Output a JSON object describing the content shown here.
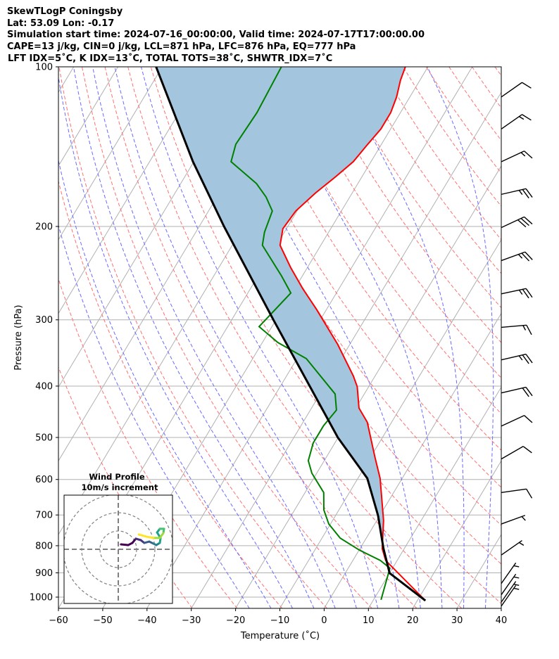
{
  "header": {
    "title": "SkewTLogP Coningsby",
    "location": "Lat: 53.09   Lon: -0.17",
    "times": "Simulation start time: 2024-07-16_00:00:00, Valid time: 2024-07-17T17:00:00.00",
    "params": "CAPE=13 j/kg, CIN=0 j/kg, LCL=871 hPa, LFC=876 hPa, EQ=777 hPa",
    "indices": "LFT IDX=5˚C, K IDX=13˚C, TOTAL TOTS=38˚C, SHWTR_IDX=7˚C"
  },
  "chart_data": {
    "type": "line",
    "title": "SkewTLogP Coningsby",
    "xlabel": "Temperature (˚C)",
    "ylabel": "Pressure (hPa)",
    "xlim": [
      -60,
      40
    ],
    "ylim": [
      1050,
      100
    ],
    "x_ticks": [
      "−60",
      "−50",
      "−40",
      "−30",
      "−20",
      "−10",
      "0",
      "10",
      "20",
      "30",
      "40"
    ],
    "x_tick_values": [
      -60,
      -50,
      -40,
      -30,
      -20,
      -10,
      0,
      10,
      20,
      30,
      40
    ],
    "y_ticks": [
      "100",
      "200",
      "300",
      "400",
      "500",
      "600",
      "700",
      "800",
      "900",
      "1000"
    ],
    "y_tick_values": [
      100,
      200,
      300,
      400,
      500,
      600,
      700,
      800,
      900,
      1000
    ],
    "grid": true,
    "colors": {
      "temperature": "#ff0000",
      "dewpoint": "#008000",
      "parcel": "#000000",
      "cape_fill": "#a3c6de",
      "isotherm": "#b0b0b0",
      "dry_adiabat": "#ff7070",
      "moist_adiabat": "#6a6aff"
    },
    "series": [
      {
        "name": "Temperature",
        "pressure": [
          1015,
          853,
          810,
          717,
          597,
          545,
          468,
          440,
          401,
          383,
          334,
          287,
          262,
          239,
          217,
          202,
          187,
          173,
          161,
          151,
          141,
          131,
          122,
          114,
          106,
          100
        ],
        "temperature": [
          21.8,
          7.4,
          5.0,
          1.5,
          -5.0,
          -9.0,
          -15.5,
          -19.3,
          -22.6,
          -24.9,
          -32.7,
          -42.2,
          -48.2,
          -53.8,
          -59.2,
          -60.8,
          -60.3,
          -58.3,
          -55.9,
          -54.0,
          -53.2,
          -52.2,
          -52.2,
          -53.0,
          -54.4,
          -55.1
        ]
      },
      {
        "name": "Dewpoint",
        "pressure": [
          1012,
          882,
          853,
          815,
          774,
          728,
          685,
          635,
          584,
          553,
          512,
          475,
          444,
          414,
          355,
          331,
          309,
          267,
          248,
          217,
          205,
          187,
          176,
          166,
          151,
          140,
          122,
          100
        ],
        "temperature": [
          11.7,
          9.4,
          6.2,
          0.0,
          -5.9,
          -10.4,
          -13.4,
          -15.8,
          -21.1,
          -23.6,
          -24.9,
          -24.9,
          -24.1,
          -26.6,
          -37.9,
          -46.5,
          -52.9,
          -50.3,
          -54.7,
          -63.2,
          -64.5,
          -65.6,
          -68.9,
          -72.9,
          -81.6,
          -82.9,
          -82.4,
          -83.1
        ]
      },
      {
        "name": "Parcel",
        "pressure": [
          1015,
          901,
          810,
          702,
          597,
          500,
          400,
          300,
          200,
          151,
          100
        ],
        "temperature": [
          21.8,
          10.0,
          5.3,
          -0.4,
          -7.9,
          -20.1,
          -33.4,
          -50.6,
          -74.4,
          -90.2,
          -111.4
        ]
      }
    ],
    "wind_barbs": [
      {
        "pressure": 114,
        "direction_deg": 235,
        "speed_kt": 10
      },
      {
        "pressure": 131,
        "direction_deg": 235,
        "speed_kt": 15
      },
      {
        "pressure": 151,
        "direction_deg": 245,
        "speed_kt": 15
      },
      {
        "pressure": 174,
        "direction_deg": 257,
        "speed_kt": 25
      },
      {
        "pressure": 201,
        "direction_deg": 245,
        "speed_kt": 30
      },
      {
        "pressure": 232,
        "direction_deg": 250,
        "speed_kt": 25
      },
      {
        "pressure": 268,
        "direction_deg": 258,
        "speed_kt": 25
      },
      {
        "pressure": 310,
        "direction_deg": 265,
        "speed_kt": 15
      },
      {
        "pressure": 357,
        "direction_deg": 257,
        "speed_kt": 25
      },
      {
        "pressure": 412,
        "direction_deg": 257,
        "speed_kt": 20
      },
      {
        "pressure": 476,
        "direction_deg": 245,
        "speed_kt": 10
      },
      {
        "pressure": 549,
        "direction_deg": 240,
        "speed_kt": 10
      },
      {
        "pressure": 635,
        "direction_deg": 262,
        "speed_kt": 10
      },
      {
        "pressure": 728,
        "direction_deg": 250,
        "speed_kt": 5
      },
      {
        "pressure": 833,
        "direction_deg": 235,
        "speed_kt": 5
      },
      {
        "pressure": 943,
        "direction_deg": 215,
        "speed_kt": 5
      },
      {
        "pressure": 990,
        "direction_deg": 215,
        "speed_kt": 5
      },
      {
        "pressure": 1022,
        "direction_deg": 215,
        "speed_kt": 5
      },
      {
        "pressure": 1040,
        "direction_deg": 215,
        "speed_kt": 5
      }
    ],
    "hodograph": {
      "title": "Wind Profile",
      "subtitle": "10m/s increment",
      "ring_speeds_ms": [
        10,
        20,
        30
      ],
      "u": [
        1.5,
        5.4,
        7.7,
        9.6,
        12.3,
        14.2,
        16.9,
        19.2,
        20.8,
        22.7,
        23.1,
        21.2,
        22.7,
        25.0,
        24.6,
        22.7,
        19.2,
        15.4,
        11.2
      ],
      "v": [
        2.7,
        2.3,
        3.5,
        5.8,
        5.0,
        3.5,
        4.2,
        3.1,
        2.3,
        3.5,
        6.2,
        9.2,
        11.2,
        11.2,
        8.8,
        6.2,
        6.2,
        6.9,
        8.1
      ]
    }
  }
}
